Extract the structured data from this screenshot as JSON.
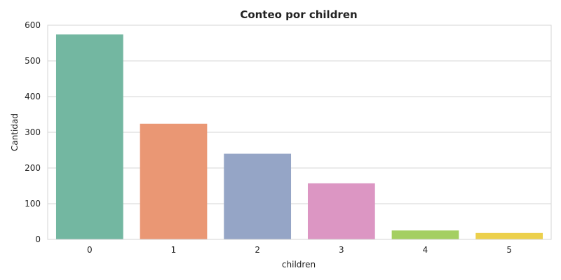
{
  "chart_data": {
    "type": "bar",
    "title": "Conteo por children",
    "xlabel": "children",
    "ylabel": "Cantidad",
    "categories": [
      "0",
      "1",
      "2",
      "3",
      "4",
      "5"
    ],
    "values": [
      574,
      324,
      240,
      157,
      25,
      18
    ],
    "ylim": [
      0,
      600
    ],
    "yticks": [
      0,
      100,
      200,
      300,
      400,
      500,
      600
    ],
    "grid": true,
    "colors": [
      "#73b7a1",
      "#ea9774",
      "#95a5c6",
      "#dc96c3",
      "#a4cf62",
      "#ecd04c"
    ]
  }
}
